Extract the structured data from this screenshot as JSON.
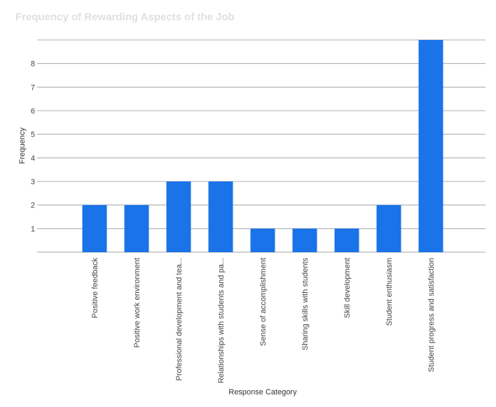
{
  "chart_data": {
    "type": "bar",
    "title": "Frequency of Rewarding Aspects of the Job",
    "xlabel": "Response Category",
    "ylabel": "Frequency",
    "ylim": [
      0,
      9
    ],
    "yticks": [
      1,
      2,
      3,
      4,
      5,
      6,
      7,
      8
    ],
    "grid": true,
    "categories": [
      "Positive feedback",
      "Positive work environment",
      "Professional development and tea...",
      "Relationships with students and pa...",
      "Sense of accomplishment",
      "Sharing skills with students",
      "Skill development",
      "Student enthusiasm",
      "Student progress and satisfaction"
    ],
    "series": [
      {
        "name": "Frequency",
        "values": [
          2,
          2,
          3,
          3,
          1,
          1,
          1,
          2,
          9
        ]
      }
    ],
    "colors": {
      "bar": "#1a73e8",
      "title": "#e0e0e0",
      "grid": "#999999"
    }
  }
}
